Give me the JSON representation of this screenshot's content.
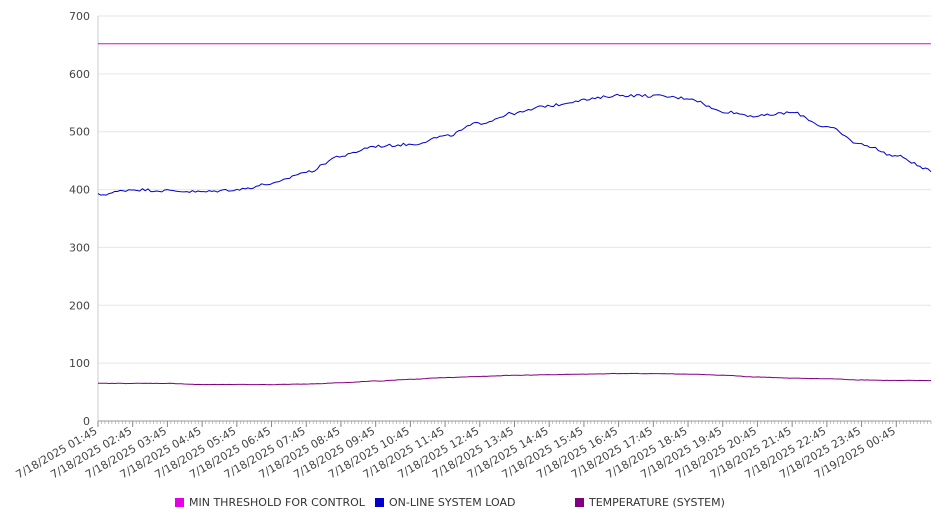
{
  "chart_data": {
    "type": "line",
    "title": "",
    "xlabel": "",
    "ylabel": "",
    "ylim": [
      0,
      700
    ],
    "yticks": [
      0,
      100,
      200,
      300,
      400,
      500,
      600,
      700
    ],
    "grid": true,
    "legend_position": "bottom",
    "x_ticks": [
      "7/18/2025 01:45",
      "7/18/2025 02:45",
      "7/18/2025 03:45",
      "7/18/2025 04:45",
      "7/18/2025 05:45",
      "7/18/2025 06:45",
      "7/18/2025 07:45",
      "7/18/2025 08:45",
      "7/18/2025 09:45",
      "7/18/2025 10:45",
      "7/18/2025 11:45",
      "7/18/2025 12:45",
      "7/18/2025 13:45",
      "7/18/2025 14:45",
      "7/18/2025 15:45",
      "7/18/2025 16:45",
      "7/18/2025 17:45",
      "7/18/2025 18:45",
      "7/18/2025 19:45",
      "7/18/2025 20:45",
      "7/18/2025 21:45",
      "7/18/2025 22:45",
      "7/18/2025 23:45",
      "7/19/2025 00:45"
    ],
    "series": [
      {
        "name": "MIN THRESHOLD FOR CONTROL",
        "color": "#e600e6",
        "values": [
          652,
          652,
          652,
          652,
          652,
          652,
          652,
          652,
          652,
          652,
          652,
          652,
          652,
          652,
          652,
          652,
          652,
          652,
          652,
          652,
          652,
          652,
          652,
          652,
          652
        ]
      },
      {
        "name": "ON-LINE SYSTEM LOAD",
        "color": "#0000cc",
        "values": [
          391,
          400,
          398,
          396,
          400,
          410,
          430,
          458,
          475,
          478,
          492,
          515,
          532,
          545,
          555,
          563,
          562,
          558,
          535,
          527,
          533,
          508,
          478,
          458,
          433
        ]
      },
      {
        "name": "TEMPERATURE (SYSTEM)",
        "color": "#800080",
        "values": [
          65,
          65,
          65,
          63,
          63,
          63,
          64,
          66,
          69,
          72,
          75,
          77,
          79,
          80,
          81,
          82,
          82,
          81,
          79,
          76,
          74,
          73,
          71,
          70,
          70
        ]
      }
    ]
  }
}
